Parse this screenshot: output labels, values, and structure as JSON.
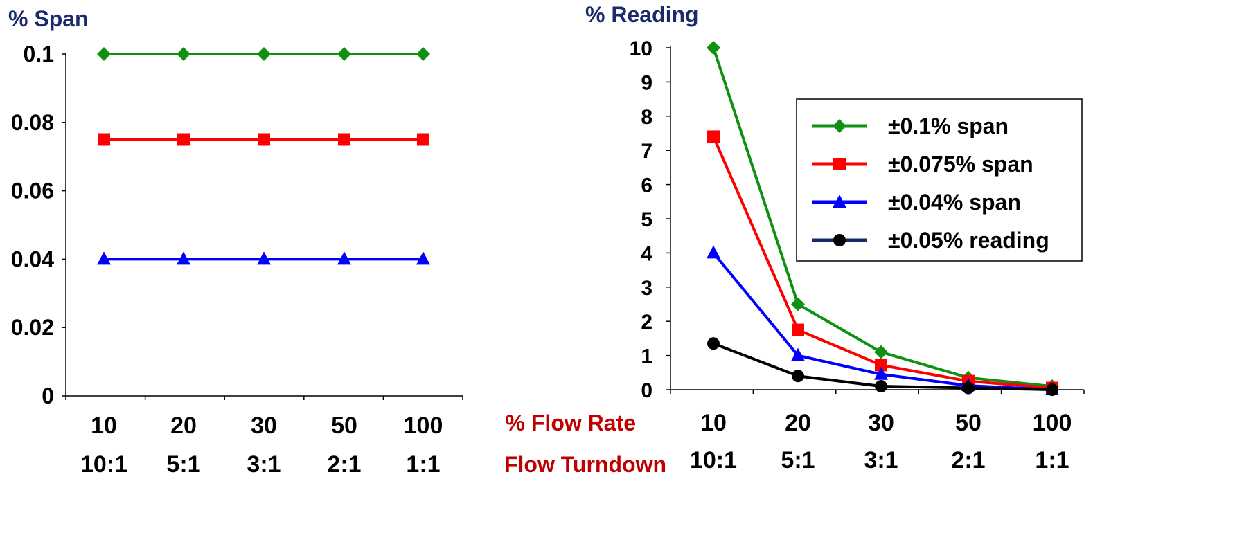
{
  "colors": {
    "green": "#109010",
    "red": "#ff0000",
    "blue": "#0000ff",
    "black": "#000000",
    "axis_title": "#1a2a6b",
    "x_title": "#c00000"
  },
  "x_row_labels": {
    "flow_rate": "% Flow Rate",
    "turndown": "Flow Turndown"
  },
  "chart_data": [
    {
      "type": "line",
      "ylabel": "% Span",
      "ylim": [
        0,
        0.1
      ],
      "yticks": [
        "0",
        "0.02",
        "0.04",
        "0.06",
        "0.08",
        "0.1"
      ],
      "categories": [
        "10",
        "20",
        "30",
        "50",
        "100"
      ],
      "turndown": [
        "10:1",
        "5:1",
        "3:1",
        "2:1",
        "1:1"
      ],
      "grid": false,
      "series": [
        {
          "name": "±0.1% span",
          "color": "#109010",
          "marker": "diamond",
          "values": [
            0.1,
            0.1,
            0.1,
            0.1,
            0.1
          ]
        },
        {
          "name": "±0.075% span",
          "color": "#ff0000",
          "marker": "square",
          "values": [
            0.075,
            0.075,
            0.075,
            0.075,
            0.075
          ]
        },
        {
          "name": "±0.04% span",
          "color": "#0000ff",
          "marker": "triangle",
          "values": [
            0.04,
            0.04,
            0.04,
            0.04,
            0.04
          ]
        }
      ]
    },
    {
      "type": "line",
      "ylabel": "% Reading",
      "ylim": [
        0,
        10
      ],
      "yticks": [
        "0",
        "1",
        "2",
        "3",
        "4",
        "5",
        "6",
        "7",
        "8",
        "9",
        "10"
      ],
      "categories": [
        "10",
        "20",
        "30",
        "50",
        "100"
      ],
      "turndown": [
        "10:1",
        "5:1",
        "3:1",
        "2:1",
        "1:1"
      ],
      "grid": false,
      "legend": "top-right",
      "series": [
        {
          "name": "±0.1% span",
          "color": "#109010",
          "marker": "diamond",
          "values": [
            10,
            2.5,
            1.1,
            0.35,
            0.1
          ]
        },
        {
          "name": "±0.075% span",
          "color": "#ff0000",
          "marker": "square",
          "values": [
            7.4,
            1.75,
            0.72,
            0.25,
            0.05
          ]
        },
        {
          "name": "±0.04% span",
          "color": "#0000ff",
          "marker": "triangle",
          "values": [
            4.0,
            1.0,
            0.45,
            0.12,
            0.0
          ]
        },
        {
          "name": "±0.05% reading",
          "color": "#000000",
          "marker": "circle",
          "values": [
            1.35,
            0.4,
            0.1,
            0.05,
            0.0
          ]
        }
      ]
    }
  ]
}
